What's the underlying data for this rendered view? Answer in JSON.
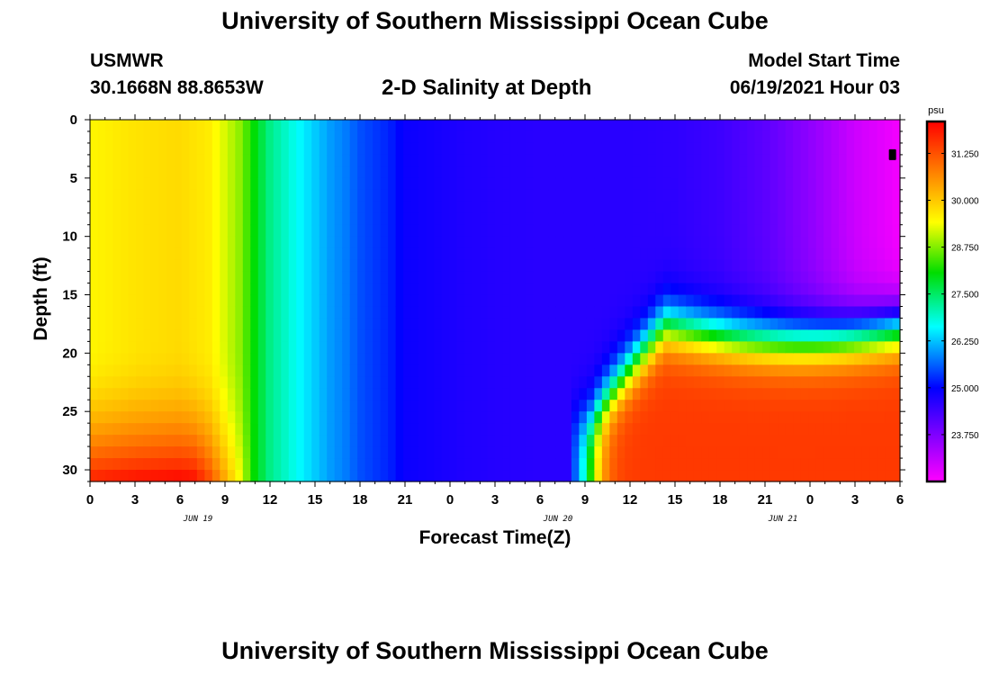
{
  "header": {
    "title": "University of Southern Mississippi Ocean Cube",
    "station": "USMWR",
    "coords": "30.1668N  88.8653W",
    "subtitle": "2-D Salinity at Depth",
    "start_label": "Model Start Time",
    "start_value": "06/19/2021 Hour 03"
  },
  "footer": {
    "title": "University of Southern Mississippi Ocean Cube"
  },
  "chart_data": {
    "type": "heatmap",
    "title": "2-D Salinity at Depth",
    "xlabel": "Forecast Time(Z)",
    "ylabel": "Depth (ft)",
    "x_tick_labels": [
      "0",
      "3",
      "6",
      "9",
      "12",
      "15",
      "18",
      "21",
      "0",
      "3",
      "6",
      "9",
      "12",
      "15",
      "18",
      "21",
      "0",
      "3",
      "6"
    ],
    "day_labels": [
      "JUN 19",
      "JUN 20",
      "JUN 21"
    ],
    "day_label_ticks": [
      2.4,
      10.4,
      15.4
    ],
    "xlim_hours": [
      0,
      54
    ],
    "y_ticks": [
      0,
      5,
      10,
      15,
      20,
      25,
      30
    ],
    "ylim": [
      0,
      31
    ],
    "y_inverted": true,
    "colorbar": {
      "unit": "psu",
      "range": [
        22.5,
        32.1
      ],
      "ticks": [
        23.75,
        25.0,
        26.25,
        27.5,
        28.75,
        30.0,
        31.25
      ],
      "tick_labels": [
        "23.750",
        "25.000",
        "26.250",
        "27.500",
        "28.750",
        "30.000",
        "31.250"
      ],
      "colors": [
        "#ff00ff",
        "#0000ff",
        "#00ffff",
        "#00dd00",
        "#ffff00",
        "#ff8000",
        "#ff0000"
      ],
      "color_positions": [
        0.0,
        0.26,
        0.43,
        0.58,
        0.72,
        0.86,
        1.0
      ]
    },
    "time_profile_hours": [
      0,
      3,
      6,
      8,
      9,
      10,
      11,
      12,
      14,
      16,
      17,
      18,
      20,
      21,
      23,
      25,
      27,
      30,
      33,
      36,
      39,
      42,
      45,
      48,
      51,
      54
    ],
    "surface_salinity": [
      29.5,
      29.7,
      29.8,
      29.6,
      29.2,
      28.8,
      28.0,
      27.3,
      26.6,
      26.0,
      25.8,
      25.5,
      25.2,
      24.9,
      24.8,
      24.7,
      24.65,
      24.6,
      24.6,
      24.6,
      24.55,
      24.4,
      24.1,
      23.6,
      23.0,
      22.6
    ],
    "deep_surge_start_hour": 33.3,
    "deep_max_salinity": 31.5,
    "marker": {
      "hour": 53.5,
      "depth_ft": 3
    }
  }
}
